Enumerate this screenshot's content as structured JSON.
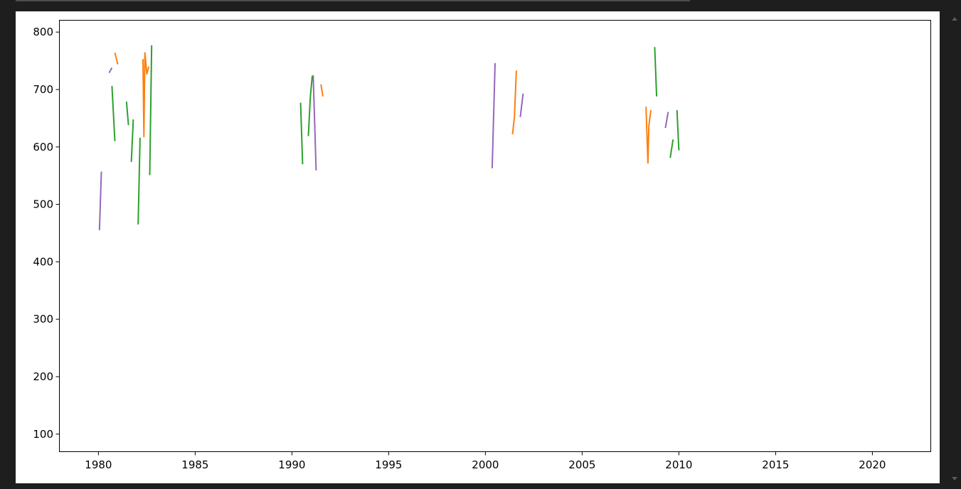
{
  "chart_data": {
    "type": "line",
    "title": "",
    "xlabel": "",
    "ylabel": "",
    "xlim": [
      1978,
      2023
    ],
    "ylim": [
      70,
      820
    ],
    "x_ticks": [
      "1980",
      "1985",
      "1990",
      "1995",
      "2000",
      "2005",
      "2010",
      "2015",
      "2020"
    ],
    "y_ticks": [
      "100",
      "200",
      "300",
      "400",
      "500",
      "600",
      "700",
      "800"
    ],
    "grid": false,
    "legend": "none",
    "series": [
      {
        "color": "#9467bd",
        "segments": [
          [
            [
              1980.05,
              455
            ],
            [
              1980.15,
              557
            ]
          ],
          [
            [
              1980.55,
              729
            ],
            [
              1980.7,
              738
            ]
          ],
          [
            [
              1991.1,
              725
            ],
            [
              1991.25,
              559
            ]
          ],
          [
            [
              2000.35,
              563
            ],
            [
              2000.5,
              746
            ]
          ],
          [
            [
              2001.8,
              652
            ],
            [
              2001.95,
              693
            ]
          ],
          [
            [
              2009.3,
              633
            ],
            [
              2009.45,
              661
            ]
          ]
        ]
      },
      {
        "color": "#ff7f0e",
        "segments": [
          [
            [
              1980.85,
              764
            ],
            [
              1981.0,
              744
            ]
          ],
          [
            [
              1982.3,
              753
            ],
            [
              1982.35,
              618
            ],
            [
              1982.4,
              764
            ],
            [
              1982.5,
              727
            ],
            [
              1982.6,
              740
            ]
          ],
          [
            [
              1991.5,
              709
            ],
            [
              1991.6,
              688
            ]
          ],
          [
            [
              2001.4,
              622
            ],
            [
              2001.5,
              652
            ],
            [
              2001.6,
              733
            ]
          ],
          [
            [
              2008.3,
              670
            ],
            [
              2008.4,
              572
            ],
            [
              2008.45,
              637
            ],
            [
              2008.55,
              664
            ]
          ]
        ]
      },
      {
        "color": "#2ca02c",
        "segments": [
          [
            [
              1980.7,
              706
            ],
            [
              1980.85,
              610
            ]
          ],
          [
            [
              1981.45,
              679
            ],
            [
              1981.55,
              638
            ]
          ],
          [
            [
              1981.7,
              574
            ],
            [
              1981.8,
              648
            ]
          ],
          [
            [
              1982.05,
              465
            ],
            [
              1982.15,
              616
            ]
          ],
          [
            [
              1982.65,
              551
            ],
            [
              1982.75,
              777
            ]
          ],
          [
            [
              1990.45,
              677
            ],
            [
              1990.55,
              570
            ]
          ],
          [
            [
              1990.85,
              619
            ],
            [
              1990.95,
              686
            ],
            [
              1991.05,
              724
            ]
          ],
          [
            [
              2008.75,
              774
            ],
            [
              2008.85,
              688
            ]
          ],
          [
            [
              2009.55,
              581
            ],
            [
              2009.7,
              613
            ]
          ],
          [
            [
              2009.9,
              664
            ],
            [
              2010.0,
              594
            ]
          ]
        ]
      }
    ]
  }
}
